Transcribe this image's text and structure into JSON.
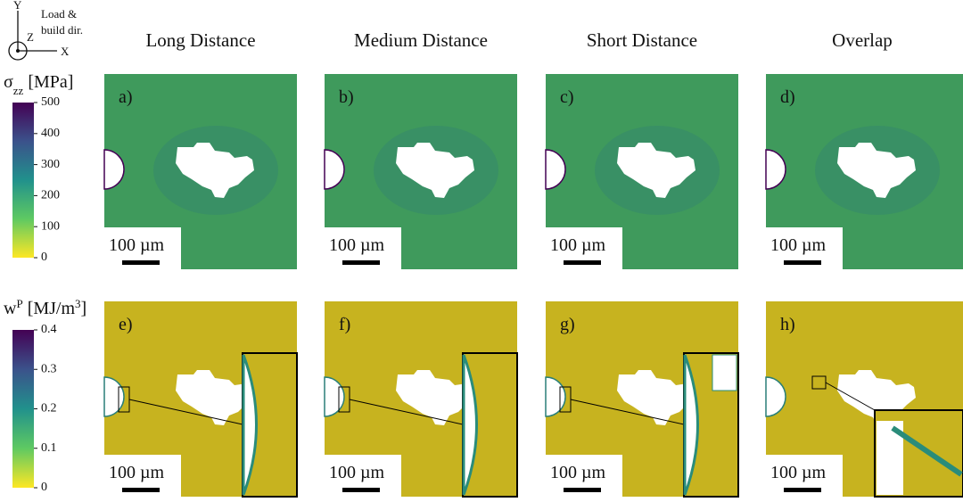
{
  "axes_icon": {
    "y": "Y",
    "z": "Z",
    "x": "X",
    "note": [
      "Load &",
      "build dir."
    ]
  },
  "columns": [
    "Long Distance",
    "Medium Distance",
    "Short Distance",
    "Overlap"
  ],
  "colorbars": [
    {
      "title": {
        "symbol": "σ",
        "script": "zz",
        "unit": " [MPa]"
      },
      "lim": [
        0,
        500
      ],
      "ticks": [
        0,
        100,
        200,
        300,
        400,
        500
      ]
    },
    {
      "title": {
        "symbol": "w",
        "script": "P",
        "unit": " [MJ/m",
        "unit_sup": "3",
        "unit_end": "]"
      },
      "lim": [
        0,
        0.4
      ],
      "ticks": [
        0,
        0.1,
        0.2,
        0.3,
        0.4
      ]
    }
  ],
  "rows": [
    {
      "panels": [
        "a)",
        "b)",
        "c)",
        "d)"
      ]
    },
    {
      "panels": [
        "e)",
        "f)",
        "g)",
        "h)"
      ]
    }
  ],
  "scale_bar_label": "100 µm"
}
